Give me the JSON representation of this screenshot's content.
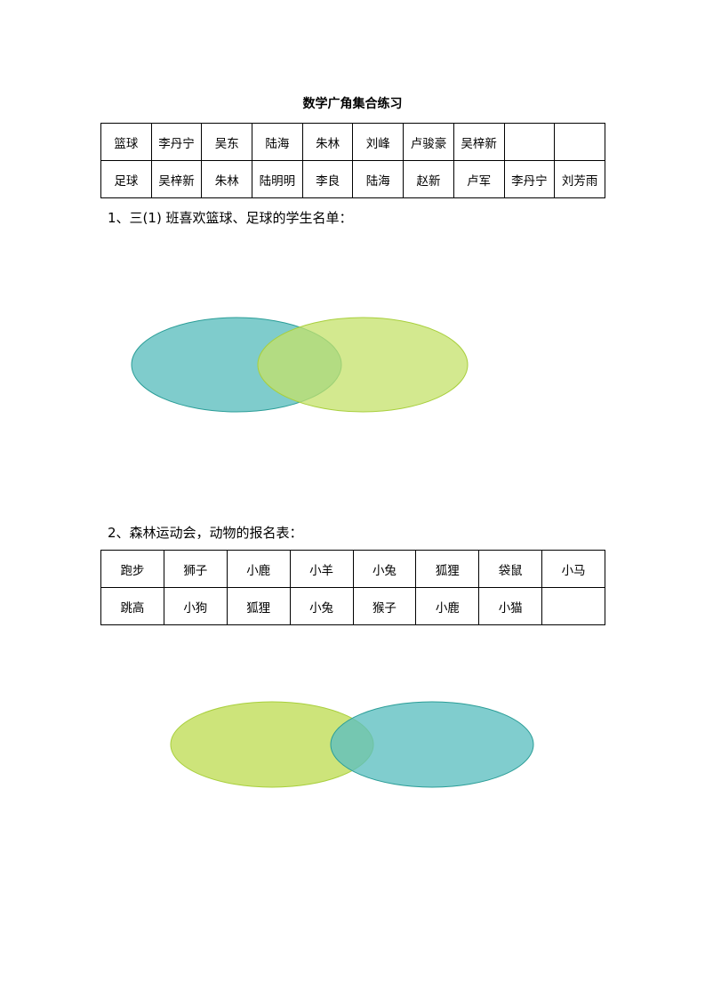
{
  "title": "数学广角集合练习",
  "table1": {
    "rows": [
      [
        "篮球",
        "李丹宁",
        "吴东",
        "陆海",
        "朱林",
        "刘峰",
        "卢骏豪",
        "吴梓新",
        "",
        ""
      ],
      [
        "足球",
        "吴梓新",
        "朱林",
        "陆明明",
        "李良",
        "陆海",
        "赵新",
        "卢军",
        "李丹宁",
        "刘芳雨"
      ]
    ]
  },
  "question1": "1、三(1)  班喜欢篮球、足球的学生名单：",
  "question2": "2、森林运动会，动物的报名表：",
  "table2": {
    "rows": [
      [
        "跑步",
        "狮子",
        "小鹿",
        "小羊",
        "小兔",
        "狐狸",
        "袋鼠",
        "小马"
      ],
      [
        "跳高",
        "小狗",
        "狐狸",
        "小兔",
        "猴子",
        "小鹿",
        "小猫",
        ""
      ]
    ]
  },
  "colors": {
    "teal": "#7fcccc",
    "green": "#cde47a",
    "teal_stroke": "#2a9d97",
    "green_stroke": "#a8cf3c"
  }
}
